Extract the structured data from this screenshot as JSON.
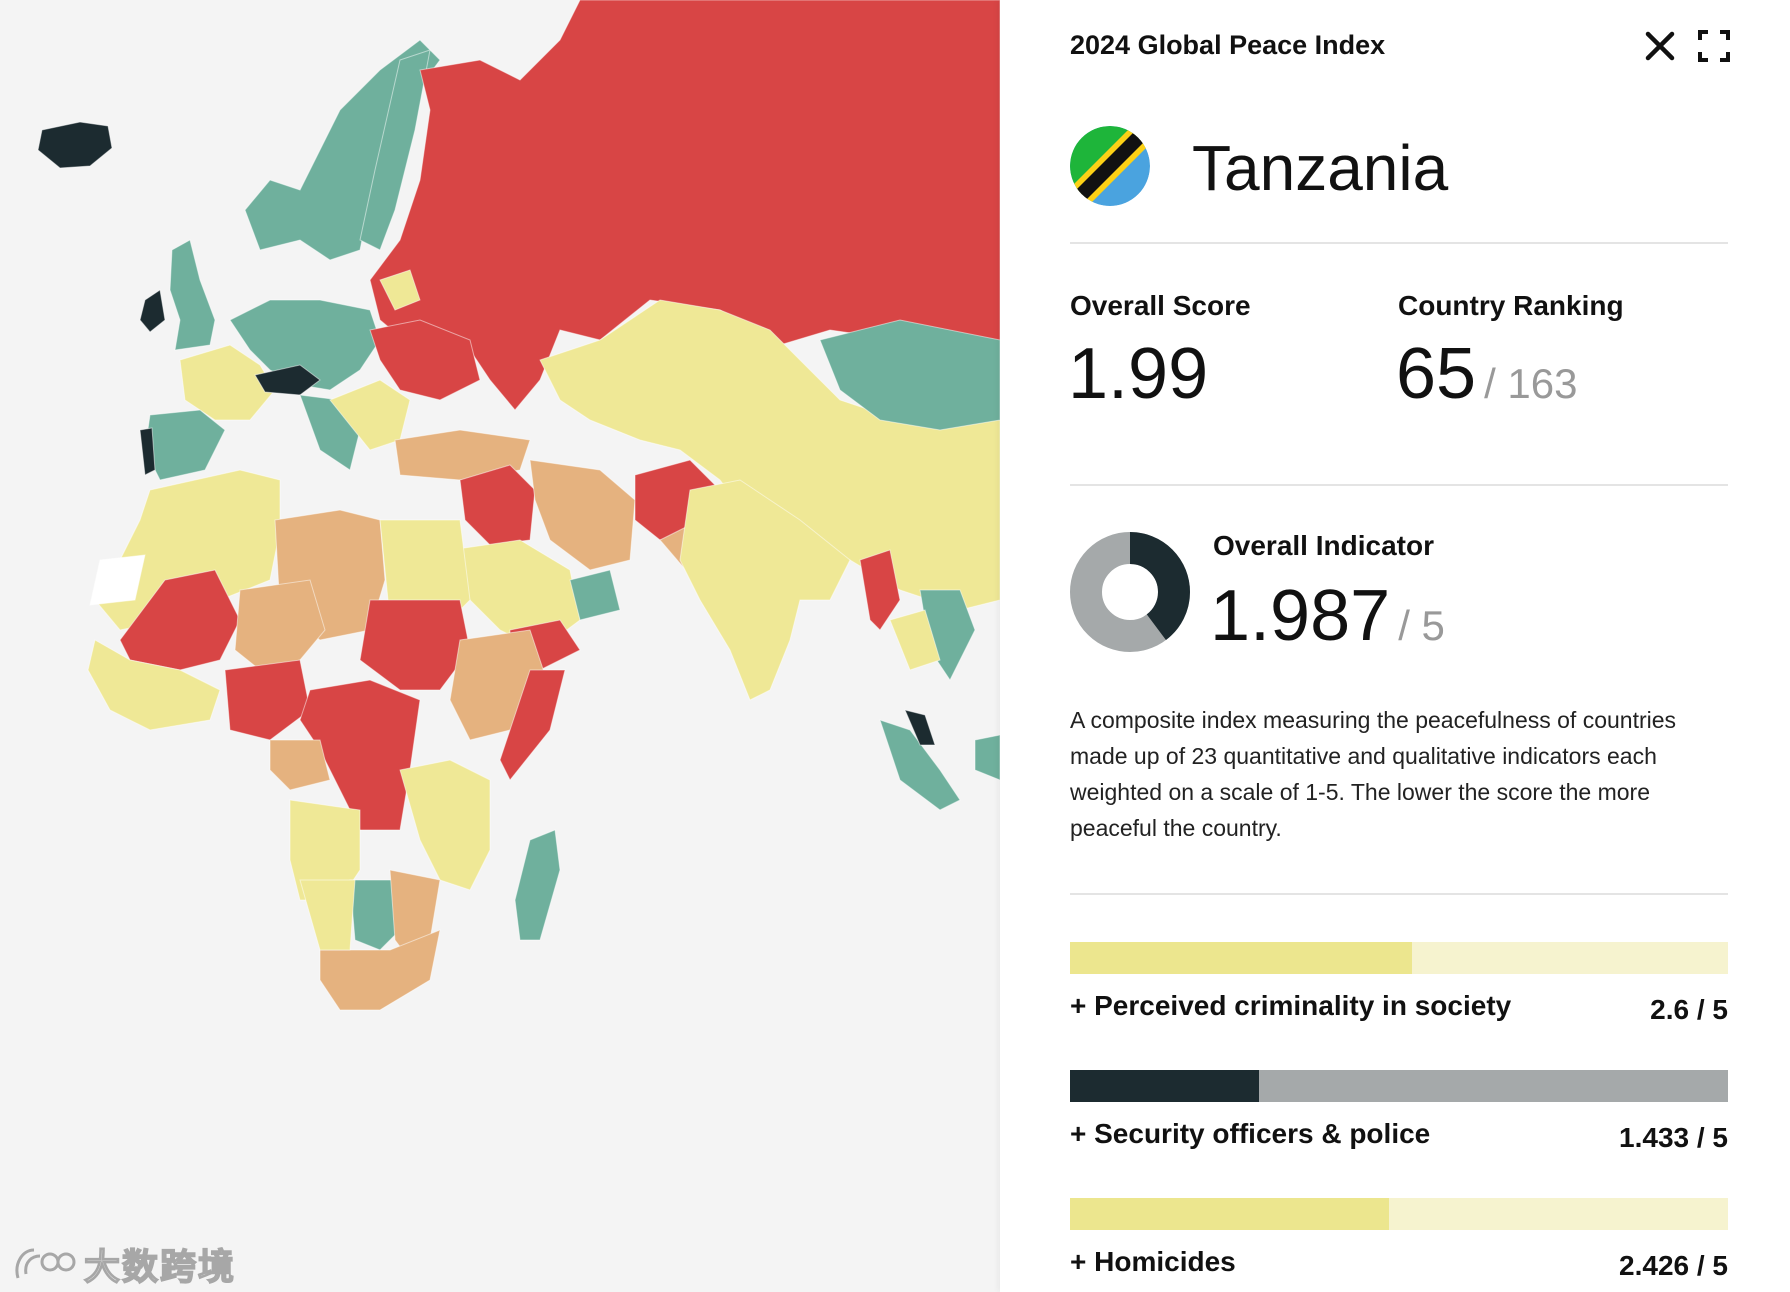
{
  "panel": {
    "title": "2024 Global Peace Index",
    "close_icon": "close-icon",
    "expand_icon": "fullscreen-icon"
  },
  "country": {
    "name": "Tanzania",
    "flag_colors": {
      "green": "#1eb53a",
      "black": "#111111",
      "yellow": "#fcd116",
      "blue": "#4aa3df"
    }
  },
  "stats": {
    "score_label": "Overall Score",
    "score_value": "1.99",
    "ranking_label": "Country Ranking",
    "ranking_value": "65",
    "ranking_total": "/ 163"
  },
  "indicator": {
    "label": "Overall Indicator",
    "value": "1.987",
    "max": "/ 5",
    "fraction": 0.397
  },
  "description": "A composite index measuring the peacefulness of countries made up of 23 quantitative and qualitative indicators each weighted on a scale of 1-5. The lower the score the more peaceful the country.",
  "metrics": [
    {
      "label": "+ Perceived criminality in society",
      "value": "2.6 / 5",
      "fraction": 0.52,
      "fill_color": "#ece68e",
      "track_color": "#f6f3cf"
    },
    {
      "label": "+ Security officers & police",
      "value": "1.433 / 5",
      "fraction": 0.287,
      "fill_color": "#1c2b30",
      "track_color": "#a5a9aa"
    },
    {
      "label": "+ Homicides",
      "value": "2.426 / 5",
      "fraction": 0.485,
      "fill_color": "#ece68e",
      "track_color": "#f6f3cf"
    }
  ],
  "map": {
    "colors": {
      "very_high": "#1c2b30",
      "high": "#6fb09d",
      "medium": "#efe896",
      "low": "#e5b27f",
      "very_low": "#d84545",
      "no_data": "#ffffff"
    }
  },
  "watermark": {
    "text": "大数跨境",
    "logo_icon": "watermark-logo-icon"
  }
}
